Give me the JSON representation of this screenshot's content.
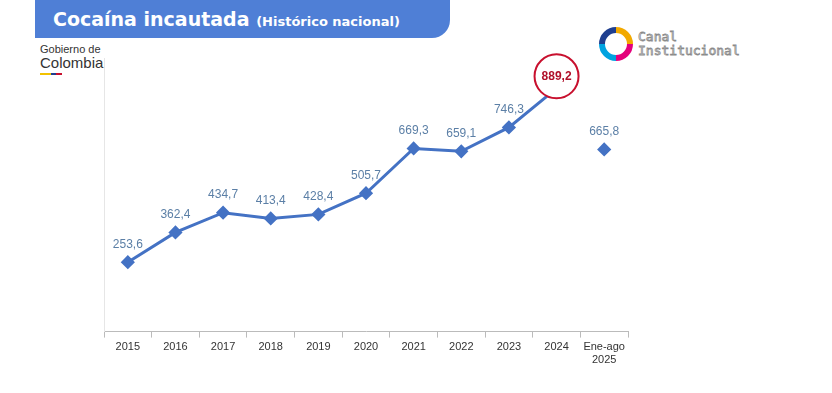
{
  "chart_data": {
    "type": "line",
    "title": "Cocaína incautada (Histórico nacional)",
    "categories": [
      "2015",
      "2016",
      "2017",
      "2018",
      "2019",
      "2020",
      "2021",
      "2022",
      "2023",
      "2024",
      "Ene-ago 2025"
    ],
    "series": [
      {
        "color": "#4472c4",
        "marker": "diamond",
        "line_style": "solid",
        "values": [
          253.6,
          362.4,
          434.7,
          413.4,
          428.4,
          505.7,
          669.3,
          659.1,
          746.3,
          889.2,
          null
        ],
        "value_labels": [
          "253,6",
          "362,4",
          "434,7",
          "413,4",
          "428,4",
          "505,7",
          "669,3",
          "659,1",
          "746,3",
          "889,2",
          null
        ]
      },
      {
        "color": "#4472c4",
        "marker": "diamond",
        "line_style": "none",
        "values": [
          null,
          null,
          null,
          null,
          null,
          null,
          null,
          null,
          null,
          null,
          665.8
        ],
        "value_labels": [
          null,
          null,
          null,
          null,
          null,
          null,
          null,
          null,
          null,
          null,
          "665,8"
        ]
      }
    ],
    "ylim": [
      0,
      1000
    ],
    "grid": false,
    "data_labels": true,
    "tick_labels": "x"
  },
  "branding": {
    "left": "Gobierno de Colombia",
    "right": "Canal Institucional"
  }
}
